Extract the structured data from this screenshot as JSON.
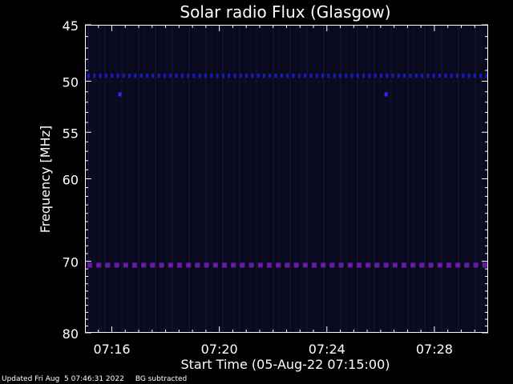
{
  "chart_data": {
    "type": "heatmap",
    "title": "Solar radio Flux (Glasgow)",
    "xlabel": "Start Time (05-Aug-22 07:15:00)",
    "ylabel": "Frequency [MHz]",
    "x_ticks": [
      "07:16",
      "07:20",
      "07:24",
      "07:28"
    ],
    "x_tick_minutes": [
      1,
      5,
      9,
      13
    ],
    "xlim_minutes": [
      0,
      15
    ],
    "y_scale": "log",
    "y_ticks": [
      45,
      50,
      55,
      60,
      70,
      80
    ],
    "ylim": [
      45,
      80
    ],
    "background_color": "#0a0a1e",
    "features": [
      {
        "label": "interference line",
        "frequency_mhz": 49.5,
        "color": "#1a1acc"
      },
      {
        "label": "interference line",
        "frequency_mhz": 70.5,
        "color": "#6a1aa8"
      },
      {
        "label": "spot",
        "frequency_mhz": 51.2,
        "time_minute": 1.3,
        "color": "#2a2aff"
      },
      {
        "label": "spot",
        "frequency_mhz": 51.2,
        "time_minute": 11.2,
        "color": "#2a2aff"
      }
    ]
  },
  "footer": {
    "updated": "Updated Fri Aug  5 07:46:31 2022",
    "note": "BG subtracted"
  }
}
